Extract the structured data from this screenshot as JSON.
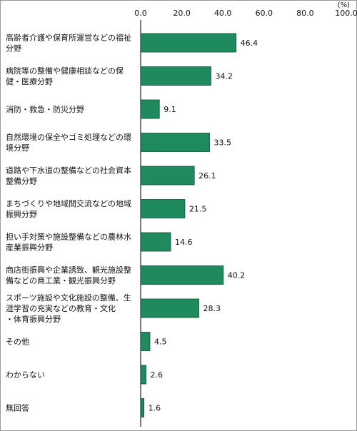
{
  "chart_data": {
    "type": "bar",
    "orientation": "horizontal",
    "unit_label": "(%)",
    "xlim": [
      0,
      100
    ],
    "xticks": [
      "0.0",
      "20.0",
      "40.0",
      "60.0",
      "80.0",
      "100.0"
    ],
    "bar_color": "#1f8a5e",
    "grid": false,
    "categories": [
      [
        "高齢者介護や保育所運営などの福祉",
        "分野"
      ],
      [
        "病院等の整備や健康相談などの保",
        "健・医療分野"
      ],
      [
        "消防・救急・防災分野"
      ],
      [
        "自然環境の保全やゴミ処理などの環",
        "境分野"
      ],
      [
        "道路や下水道の整備などの社会資本",
        "整備分野"
      ],
      [
        "まちづくりや地域間交流などの地域",
        "振興分野"
      ],
      [
        "担い手対策や施設整備などの農林水",
        "産業振興分野"
      ],
      [
        "商店街振興や企業誘致、観光施設整",
        "備などの商工業・観光振興分野"
      ],
      [
        "スポーツ施設や文化施設の整備、生",
        "涯学習の充実などの教育・文化",
        "・体育振興分野"
      ],
      [
        "その他"
      ],
      [
        "わからない"
      ],
      [
        "無回答"
      ]
    ],
    "values": [
      46.4,
      34.2,
      9.1,
      33.5,
      26.1,
      21.5,
      14.6,
      40.2,
      28.3,
      4.5,
      2.6,
      1.6
    ],
    "value_labels": [
      "46.4",
      "34.2",
      "9.1",
      "33.5",
      "26.1",
      "21.5",
      "14.6",
      "40.2",
      "28.3",
      "4.5",
      "2.6",
      "1.6"
    ]
  }
}
